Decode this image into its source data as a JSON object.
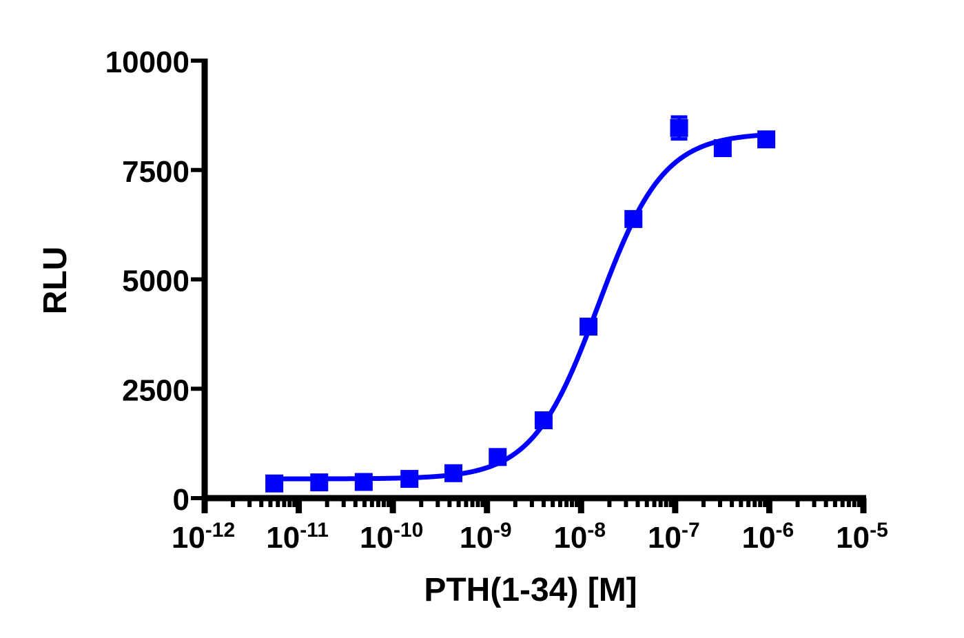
{
  "chart_data": {
    "type": "scatter",
    "title": "",
    "xlabel": "PTH(1-34) [M]",
    "ylabel": "RLU",
    "xscale": "log",
    "xlim_exponents": [
      -12,
      -5
    ],
    "ylim": [
      0,
      10000
    ],
    "grid": false,
    "legend": "none",
    "x_tick_labels": [
      {
        "base": "10",
        "exp": "-12"
      },
      {
        "base": "10",
        "exp": "-11"
      },
      {
        "base": "10",
        "exp": "-10"
      },
      {
        "base": "10",
        "exp": "-9"
      },
      {
        "base": "10",
        "exp": "-8"
      },
      {
        "base": "10",
        "exp": "-7"
      },
      {
        "base": "10",
        "exp": "-6"
      },
      {
        "base": "10",
        "exp": "-5"
      }
    ],
    "y_tick_labels": [
      "0",
      "2500",
      "5000",
      "7500",
      "10000"
    ],
    "y_ticks": [
      0,
      2500,
      5000,
      7500,
      10000
    ],
    "series": [
      {
        "name": "PTH(1-34)",
        "color": "#0000ff",
        "marker": "square",
        "x": [
          5.5e-12,
          1.65e-11,
          4.9e-11,
          1.5e-10,
          4.4e-10,
          1.3e-09,
          4e-09,
          1.2e-08,
          3.6e-08,
          1.1e-07,
          3.2e-07,
          9.3e-07
        ],
        "y": [
          335,
          360,
          370,
          440,
          570,
          940,
          1780,
          3920,
          6380,
          8460,
          8000,
          8200
        ],
        "error": [
          60,
          50,
          60,
          50,
          60,
          80,
          90,
          150,
          160,
          250,
          120,
          80
        ]
      }
    ],
    "fit": {
      "type": "four-parameter logistic",
      "color": "#0000ff",
      "bottom": 440,
      "top": 8350,
      "log_ec50": -7.82,
      "hill_slope": 1.25
    }
  }
}
